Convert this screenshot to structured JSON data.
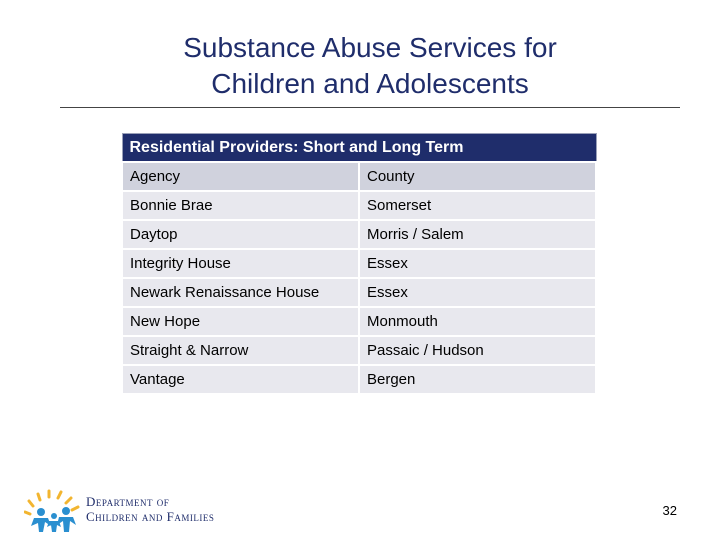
{
  "slide": {
    "title_line1": "Substance Abuse Services for",
    "title_line2": "Children and Adolescents",
    "page_number": "32"
  },
  "table": {
    "caption": "Residential Providers:  Short and Long Term",
    "headers": [
      "Agency",
      "County"
    ],
    "rows": [
      [
        "Bonnie Brae",
        "Somerset"
      ],
      [
        "Daytop",
        "Morris / Salem"
      ],
      [
        "Integrity House",
        "Essex"
      ],
      [
        "Newark Renaissance House",
        "Essex"
      ],
      [
        "New Hope",
        "Monmouth"
      ],
      [
        "Straight & Narrow",
        "Passaic / Hudson"
      ],
      [
        "Vantage",
        "Bergen"
      ]
    ]
  },
  "logo": {
    "line1": "Department of",
    "line2": "Children and Families",
    "colors": {
      "sun": "#f2b530",
      "figures": "#2a8fd0",
      "text": "#1f2d6b"
    }
  }
}
